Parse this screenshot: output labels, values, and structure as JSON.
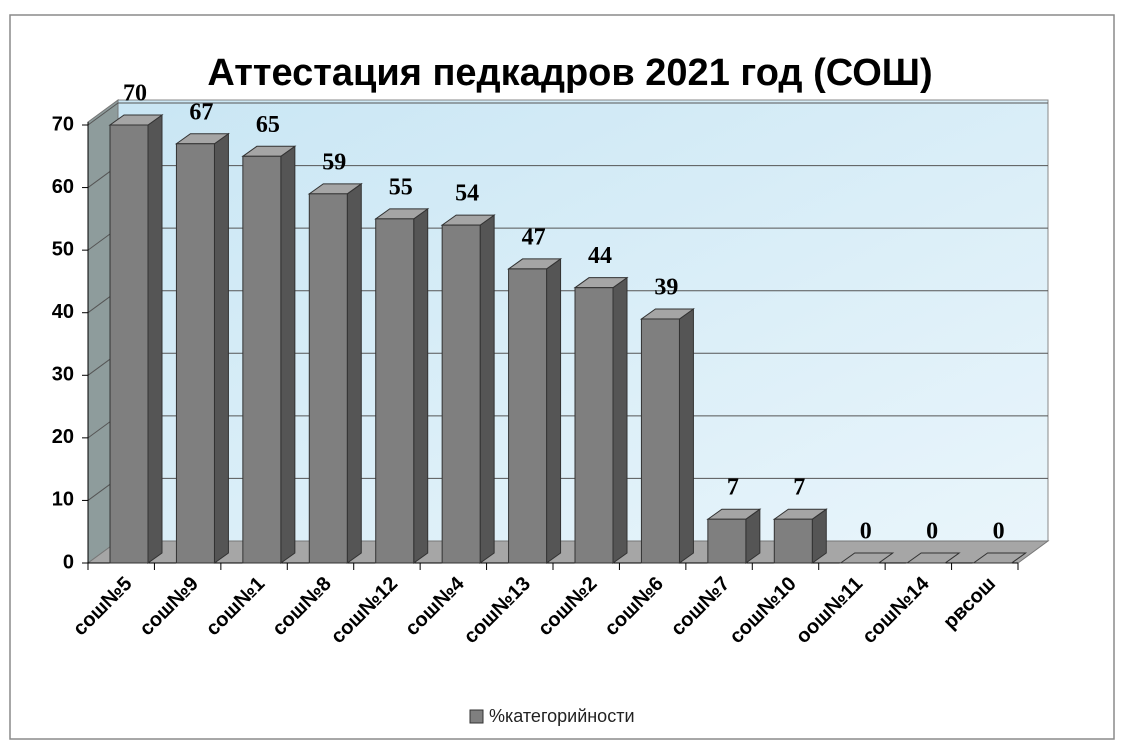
{
  "chart_data": {
    "type": "bar",
    "title": "Аттестация педкадров 2021 год (СОШ)",
    "categories": [
      "сош№5",
      "сош№9",
      "сош№1",
      "сош№8",
      "сош№12",
      "сош№4",
      "сош№13",
      "сош№2",
      "сош№6",
      "сош№7",
      "сош№10",
      "оош№11",
      "сош№14",
      "рвсош"
    ],
    "series": [
      {
        "name": "%категорийности",
        "color": "#7f7f7f",
        "values": [
          70,
          67,
          65,
          59,
          55,
          54,
          47,
          44,
          39,
          7,
          7,
          0,
          0,
          0
        ]
      }
    ],
    "ylim": [
      0,
      70
    ],
    "yticks": [
      0,
      10,
      20,
      30,
      40,
      50,
      60,
      70
    ],
    "grid": true,
    "legend": "bottom"
  }
}
